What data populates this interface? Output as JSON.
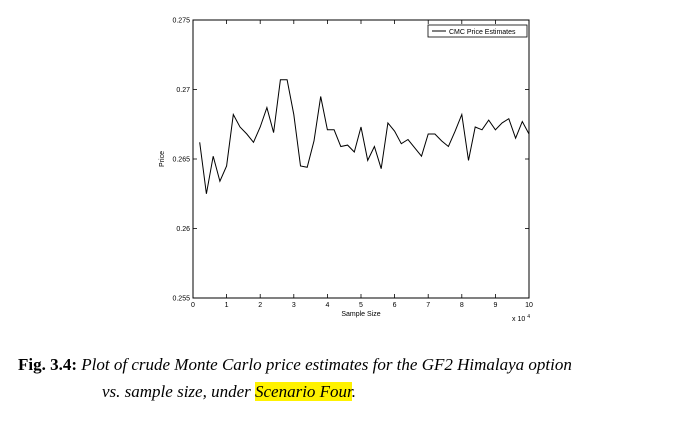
{
  "chart_data": {
    "type": "line",
    "ylabel": "Price",
    "xlabel": "Sample Size",
    "x_exponent_label": "x 10",
    "x_exponent_power": "4",
    "xlim": [
      0,
      10
    ],
    "ylim": [
      0.255,
      0.275
    ],
    "x_ticks": [
      0,
      1,
      2,
      3,
      4,
      5,
      6,
      7,
      8,
      9,
      10
    ],
    "x_tick_labels": [
      "0",
      "1",
      "2",
      "3",
      "4",
      "5",
      "6",
      "7",
      "8",
      "9",
      "10"
    ],
    "y_ticks": [
      0.255,
      0.26,
      0.265,
      0.27,
      0.275
    ],
    "y_tick_labels": [
      "0.255",
      "0.26",
      "0.265",
      "0.27",
      "0.275"
    ],
    "grid": false,
    "legend_position": "top-right",
    "series": [
      {
        "name": "CMC Price Estimates",
        "color": "#000000",
        "x": [
          0.2,
          0.4,
          0.6,
          0.8,
          1.0,
          1.2,
          1.4,
          1.6,
          1.8,
          2.0,
          2.2,
          2.4,
          2.6,
          2.8,
          3.0,
          3.2,
          3.4,
          3.6,
          3.8,
          4.0,
          4.2,
          4.4,
          4.6,
          4.8,
          5.0,
          5.2,
          5.4,
          5.6,
          5.8,
          6.0,
          6.2,
          6.4,
          6.6,
          6.8,
          7.0,
          7.2,
          7.4,
          7.6,
          7.8,
          8.0,
          8.2,
          8.4,
          8.6,
          8.8,
          9.0,
          9.2,
          9.4,
          9.6,
          9.8,
          10.0
        ],
        "y": [
          0.2662,
          0.2625,
          0.2652,
          0.2634,
          0.2645,
          0.2682,
          0.2673,
          0.2668,
          0.2662,
          0.2673,
          0.2687,
          0.2669,
          0.2707,
          0.2707,
          0.2682,
          0.2645,
          0.2644,
          0.2663,
          0.2695,
          0.2671,
          0.2671,
          0.2659,
          0.266,
          0.2655,
          0.2673,
          0.2649,
          0.2659,
          0.2643,
          0.2676,
          0.267,
          0.2661,
          0.2664,
          0.2658,
          0.2652,
          0.2668,
          0.2668,
          0.2663,
          0.2659,
          0.267,
          0.2682,
          0.2649,
          0.2673,
          0.2671,
          0.2678,
          0.2671,
          0.2676,
          0.2679,
          0.2665,
          0.2677,
          0.2668
        ]
      }
    ]
  },
  "caption": {
    "label": "Fig. 3.4:",
    "line1": "Plot of crude Monte Carlo price estimates for the GF2 Himalaya option",
    "line2_pre": "vs. sample size, under ",
    "line2_highlight": "Scenario Four",
    "line2_post": ".",
    "highlight_color": "#fff200"
  }
}
